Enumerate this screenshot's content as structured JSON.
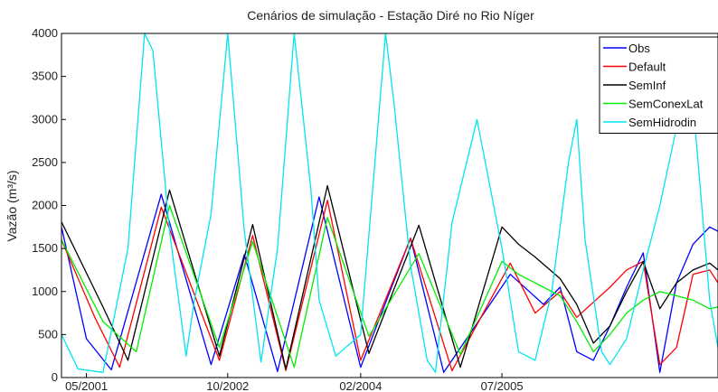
{
  "chart_data": {
    "type": "line",
    "title": "Cenários de simulação - Estação Diré no Rio Níger",
    "xlabel": "",
    "ylabel": "Vazão (m³/s)",
    "ylim": [
      0,
      4000
    ],
    "yticks": [
      0,
      500,
      1000,
      1500,
      2000,
      2500,
      3000,
      3500,
      4000
    ],
    "xlim": [
      0,
      79
    ],
    "xtick_labels": [
      {
        "x": 3,
        "label": "05/2001"
      },
      {
        "x": 20,
        "label": "10/2002"
      },
      {
        "x": 36,
        "label": "02/2004"
      },
      {
        "x": 53,
        "label": "07/2005"
      }
    ],
    "grid": false,
    "legend_position": "top-right",
    "series": [
      {
        "name": "Obs",
        "color": "#0000ff",
        "x": [
          0,
          3,
          6,
          12,
          18,
          22,
          26,
          31,
          36,
          42,
          46,
          54,
          58,
          60,
          62,
          64,
          66,
          68,
          70,
          72,
          74,
          76,
          78,
          79
        ],
        "y": [
          1750,
          450,
          90,
          2130,
          150,
          1430,
          70,
          2100,
          120,
          1620,
          60,
          1200,
          850,
          1050,
          300,
          200,
          600,
          1050,
          1450,
          60,
          1100,
          1550,
          1750,
          1700
        ]
      },
      {
        "name": "Default",
        "color": "#ff0000",
        "x": [
          0,
          4,
          7,
          12,
          19,
          23,
          27,
          32,
          36,
          42,
          47,
          54,
          57,
          60,
          62,
          66,
          68,
          70,
          72,
          74,
          76,
          78,
          79
        ],
        "y": [
          1600,
          700,
          120,
          1980,
          200,
          1650,
          80,
          2060,
          200,
          1620,
          80,
          1330,
          750,
          1000,
          700,
          1050,
          1250,
          1350,
          150,
          350,
          1200,
          1250,
          1100
        ]
      },
      {
        "name": "SemInf",
        "color": "#000000",
        "x": [
          0,
          5,
          8,
          13,
          19,
          23,
          27,
          32,
          37,
          43,
          48,
          53,
          55,
          57,
          60,
          62,
          64,
          66,
          68,
          70,
          72,
          74,
          76,
          78,
          79
        ],
        "y": [
          1810,
          820,
          200,
          2180,
          250,
          1780,
          100,
          2230,
          280,
          1770,
          120,
          1750,
          1550,
          1400,
          1150,
          850,
          400,
          600,
          1000,
          1350,
          800,
          1100,
          1250,
          1330,
          1250
        ]
      },
      {
        "name": "SemConexLat",
        "color": "#00ee00",
        "x": [
          0,
          5,
          9,
          13,
          19,
          23,
          28,
          32,
          37,
          43,
          48,
          53,
          55,
          57,
          60,
          62,
          64,
          66,
          68,
          70,
          72,
          74,
          76,
          78,
          79
        ],
        "y": [
          1600,
          650,
          300,
          2000,
          350,
          1580,
          120,
          1860,
          480,
          1440,
          270,
          1350,
          1200,
          1100,
          950,
          650,
          300,
          500,
          750,
          900,
          1000,
          950,
          900,
          800,
          820
        ]
      },
      {
        "name": "SemHidrodin",
        "color": "#00e5ee",
        "x": [
          0,
          2,
          5,
          8,
          10,
          11,
          13,
          15,
          16,
          18,
          20,
          22,
          24,
          26,
          28,
          30,
          31,
          33,
          36,
          39,
          40,
          42,
          44,
          45,
          47,
          50,
          53,
          55,
          57,
          59,
          61,
          62,
          63,
          65,
          66,
          68,
          70,
          72,
          74,
          76,
          78,
          79
        ],
        "y": [
          500,
          100,
          60,
          1500,
          4000,
          3800,
          1700,
          250,
          900,
          1900,
          4000,
          1700,
          180,
          1500,
          4000,
          2200,
          900,
          250,
          500,
          4000,
          3200,
          1300,
          200,
          60,
          1800,
          3000,
          1500,
          300,
          200,
          1000,
          2500,
          3000,
          1600,
          300,
          150,
          450,
          1250,
          2000,
          2900,
          3200,
          900,
          350
        ]
      }
    ]
  }
}
